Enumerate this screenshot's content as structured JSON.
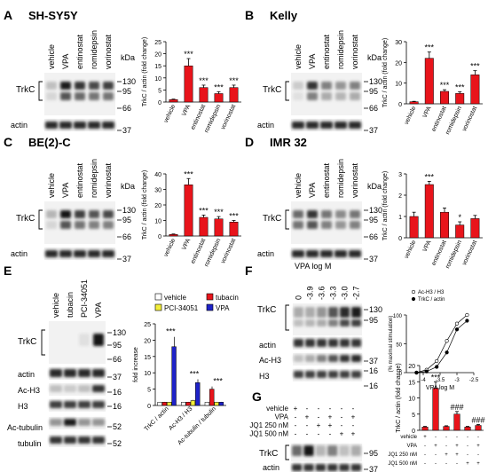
{
  "panels": {
    "A": {
      "letter": "A",
      "cell_line": "SH-SY5Y"
    },
    "B": {
      "letter": "B",
      "cell_line": "Kelly"
    },
    "C": {
      "letter": "C",
      "cell_line": "BE(2)-C"
    },
    "D": {
      "letter": "D",
      "cell_line": "IMR 32"
    },
    "E": {
      "letter": "E"
    },
    "F": {
      "letter": "F",
      "header": "VPA log M"
    },
    "G": {
      "letter": "G"
    }
  },
  "blot_lanes_abcd": [
    "vehicle",
    "VPA",
    "entinostat",
    "romidepsin",
    "vorinostat"
  ],
  "blot_lanes_e": [
    "vehicle",
    "tubacin",
    "PCI-34051",
    "VPA"
  ],
  "blot_lanes_f": [
    "0",
    "-3.9",
    "-3.6",
    "-3.3",
    "-3.0",
    "-2.7"
  ],
  "blot_labels": {
    "trkc": "TrkC",
    "actin": "actin",
    "ach3": "Ac-H3",
    "h3": "H3",
    "actubulin": "Ac-tubulin",
    "tubulin": "tubulin",
    "kda": "kDa"
  },
  "markers": {
    "abcd": [
      "130",
      "95",
      "66",
      "37"
    ],
    "e": [
      "130",
      "95",
      "66",
      "37",
      "16",
      "16",
      "52",
      "52"
    ],
    "f": [
      "130",
      "95",
      "37",
      "16",
      "16"
    ],
    "g": [
      "95",
      "37"
    ]
  },
  "g_treatment": {
    "rows": [
      "vehicle",
      "VPA",
      "JQ1 250 nM",
      "JQ1 500 nM"
    ],
    "signs": [
      [
        "+",
        "-",
        "-",
        "-",
        "-",
        "-"
      ],
      [
        "-",
        "+",
        "-",
        "+",
        "-",
        "+"
      ],
      [
        "-",
        "-",
        "+",
        "+",
        "-",
        "-"
      ],
      [
        "-",
        "-",
        "-",
        "-",
        "+",
        "+"
      ]
    ]
  },
  "colors": {
    "red": "#e8141b",
    "blue": "#1e22c9",
    "yellow": "#f3ee3a",
    "white": "#ffffff",
    "axis": "#000000"
  },
  "chart_data": [
    {
      "panel": "A",
      "type": "bar",
      "categories": [
        "vehicle",
        "VPA",
        "entinostat",
        "romidepsin",
        "vorinostat"
      ],
      "values": [
        1,
        15,
        6,
        3.5,
        6
      ],
      "errors": [
        0.2,
        3,
        1,
        0.8,
        1
      ],
      "annotations": [
        "",
        "***",
        "***",
        "***",
        "***"
      ],
      "ylabel": "TrkC / actin (fold change)",
      "ylim": [
        0,
        25
      ],
      "yticks": [
        0,
        5,
        10,
        15,
        20,
        25
      ]
    },
    {
      "panel": "B",
      "type": "bar",
      "categories": [
        "vehicle",
        "VPA",
        "entinostat",
        "romidepsin",
        "vorinostat"
      ],
      "values": [
        1,
        22,
        6,
        5,
        14
      ],
      "errors": [
        0.2,
        3,
        0.8,
        0.8,
        2
      ],
      "annotations": [
        "",
        "***",
        "***",
        "***",
        "***"
      ],
      "ylabel": "TrkC / actin (fold change)",
      "ylim": [
        0,
        30
      ],
      "yticks": [
        0,
        10,
        20,
        30
      ]
    },
    {
      "panel": "C",
      "type": "bar",
      "categories": [
        "vehicle",
        "VPA",
        "entinostat",
        "romidepsin",
        "vorinostat"
      ],
      "values": [
        1,
        33,
        12,
        11,
        9
      ],
      "errors": [
        0.3,
        4,
        1.5,
        1.5,
        1
      ],
      "annotations": [
        "",
        "***",
        "***",
        "***",
        "***"
      ],
      "ylabel": "TrkC / actin (fold change)",
      "ylim": [
        0,
        40
      ],
      "yticks": [
        0,
        10,
        20,
        30,
        40
      ]
    },
    {
      "panel": "D",
      "type": "bar",
      "categories": [
        "vehicle",
        "VPA",
        "entinostat",
        "romidepsin",
        "vorinostat"
      ],
      "values": [
        1,
        2.5,
        1.2,
        0.6,
        0.9
      ],
      "errors": [
        0.2,
        0.15,
        0.2,
        0.15,
        0.15
      ],
      "annotations": [
        "",
        "***",
        "",
        "*",
        ""
      ],
      "ylabel": "TrkC / actin (fold change)",
      "ylim": [
        0,
        3
      ],
      "yticks": [
        0,
        1,
        2,
        3
      ]
    },
    {
      "panel": "E",
      "type": "bar",
      "categories": [
        "TrkC / actin",
        "Ac-H3 / H3",
        "Ac-tubulin / tubulin"
      ],
      "series": [
        {
          "name": "vehicle",
          "color": "#ffffff",
          "values": [
            1,
            1,
            1
          ],
          "errors": [
            0.1,
            0.1,
            0.1
          ]
        },
        {
          "name": "tubacin",
          "color": "#e8141b",
          "values": [
            1,
            1,
            5
          ],
          "errors": [
            0.1,
            0.1,
            0.8
          ]
        },
        {
          "name": "PCI-34051",
          "color": "#f3ee3a",
          "values": [
            1,
            1.5,
            1
          ],
          "errors": [
            0.1,
            0.2,
            0.1
          ]
        },
        {
          "name": "VPA",
          "color": "#1e22c9",
          "values": [
            18,
            7,
            1
          ],
          "errors": [
            3,
            1,
            0.1
          ]
        }
      ],
      "annotations": [
        "***",
        "***",
        "***"
      ],
      "ylabel": "fold increase",
      "ylim": [
        0,
        25
      ],
      "yticks": [
        0,
        5,
        10,
        15,
        20,
        25
      ]
    },
    {
      "panel": "F",
      "type": "scatter",
      "x": [
        -4.2,
        -3.9,
        -3.6,
        -3.3,
        -3.0,
        -2.7
      ],
      "series": [
        {
          "name": "Ac-H3 / H3",
          "marker": "open",
          "y": [
            0,
            5,
            20,
            55,
            85,
            100
          ]
        },
        {
          "name": "TrkC / actin",
          "marker": "filled",
          "y": [
            0,
            2,
            10,
            35,
            75,
            90
          ]
        }
      ],
      "ylabel": "(% maximal stimulation)",
      "xlabel": "VPA log M",
      "xlim": [
        -4.5,
        -2.5
      ],
      "xticks": [
        -4.0,
        -3.5,
        -3.0,
        -2.5
      ],
      "ylim": [
        0,
        100
      ],
      "yticks": [
        0,
        50,
        100
      ]
    },
    {
      "panel": "G",
      "type": "bar",
      "values": [
        1,
        13,
        1.2,
        5,
        1,
        1.5
      ],
      "errors": [
        0.2,
        2,
        0.2,
        0.8,
        0.2,
        0.3
      ],
      "annotations": [
        "",
        "***",
        "",
        "###",
        "",
        "###"
      ],
      "ylabel": "TrkC / actin (fold change)",
      "ylim": [
        0,
        20
      ],
      "yticks": [
        0,
        5,
        10,
        15,
        20
      ]
    }
  ]
}
